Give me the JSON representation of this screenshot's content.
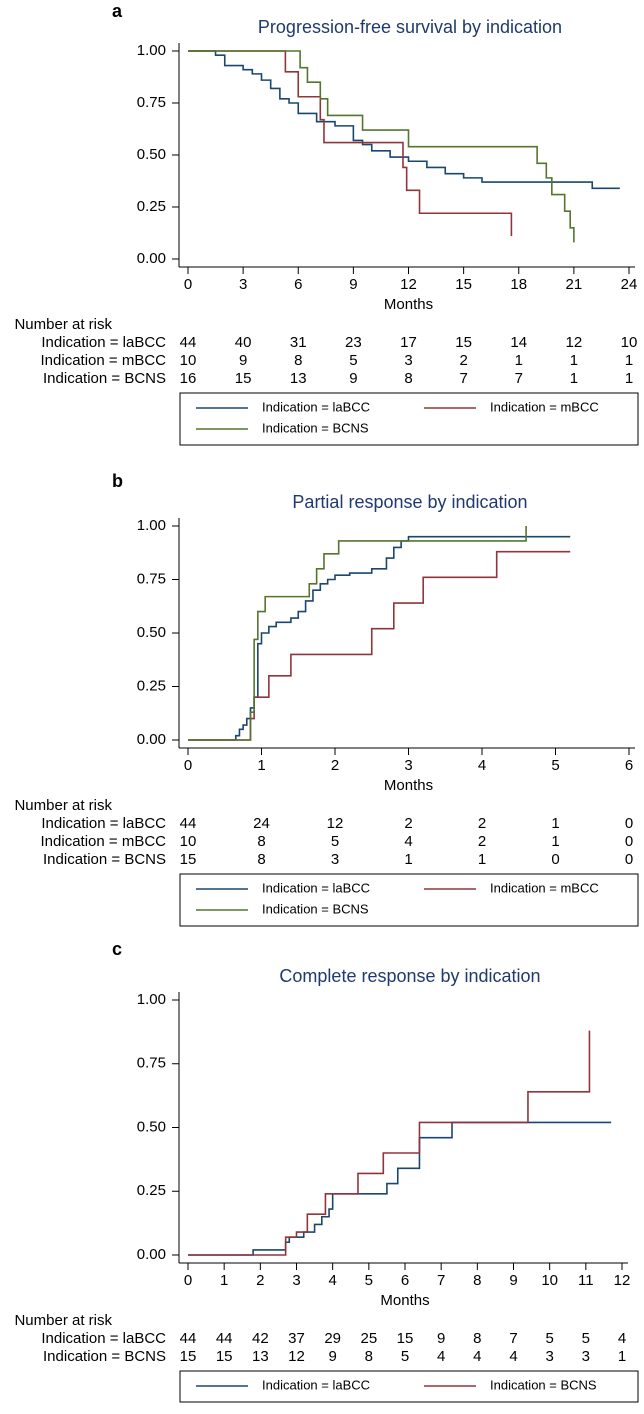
{
  "chart_data": [
    {
      "type": "line",
      "drawstyle": "steps-post",
      "panel_label": "a",
      "title": "Progression-free survival by indication",
      "xlabel": "Months",
      "xlim": [
        0,
        24
      ],
      "xticks": [
        0,
        3,
        6,
        9,
        12,
        15,
        18,
        21,
        24
      ],
      "ylim": [
        0,
        1
      ],
      "yticks": [
        {
          "value": 0,
          "label": "0.00"
        },
        {
          "value": 0.25,
          "label": "0.25"
        },
        {
          "value": 0.5,
          "label": "0.50"
        },
        {
          "value": 0.75,
          "label": "0.75"
        },
        {
          "value": 1,
          "label": "1.00"
        }
      ],
      "series": [
        {
          "name": "Indication = laBCC",
          "color": "#1a476f",
          "x": [
            0,
            1.5,
            2,
            3,
            3.5,
            4,
            4.5,
            5,
            5.5,
            6,
            7,
            8,
            9,
            9.5,
            10,
            11,
            12,
            13,
            14,
            15,
            16,
            22,
            23.5
          ],
          "values": [
            1,
            0.98,
            0.93,
            0.91,
            0.89,
            0.86,
            0.82,
            0.77,
            0.75,
            0.7,
            0.66,
            0.64,
            0.57,
            0.55,
            0.52,
            0.49,
            0.47,
            0.44,
            0.41,
            0.39,
            0.37,
            0.34,
            0.34
          ]
        },
        {
          "name": "Indication = mBCC",
          "color": "#90353b",
          "x": [
            0,
            5.3,
            6,
            7.2,
            7.4,
            11.7,
            11.9,
            12.6,
            17.6
          ],
          "values": [
            1,
            0.9,
            0.78,
            0.67,
            0.56,
            0.44,
            0.33,
            0.22,
            0.11
          ]
        },
        {
          "name": "Indication = BCNS",
          "color": "#55752f",
          "x": [
            0,
            6.1,
            6.5,
            7.2,
            7.6,
            9.5,
            12,
            19,
            19.5,
            19.8,
            20.5,
            20.8,
            21
          ],
          "values": [
            1,
            0.92,
            0.85,
            0.77,
            0.69,
            0.62,
            0.54,
            0.46,
            0.39,
            0.31,
            0.23,
            0.15,
            0.08
          ]
        }
      ],
      "risk_table": {
        "title": "Number at risk",
        "rows": [
          {
            "label": "Indication = laBCC",
            "values": [
              44,
              40,
              31,
              23,
              17,
              15,
              14,
              12,
              10
            ]
          },
          {
            "label": "Indication = mBCC",
            "values": [
              10,
              9,
              8,
              5,
              3,
              2,
              1,
              1,
              1
            ]
          },
          {
            "label": "Indication = BCNS",
            "values": [
              16,
              15,
              13,
              9,
              8,
              7,
              7,
              1,
              1
            ]
          }
        ]
      }
    },
    {
      "type": "line",
      "drawstyle": "steps-post",
      "panel_label": "b",
      "title": "Partial response by indication",
      "xlabel": "Months",
      "xlim": [
        0,
        6
      ],
      "xticks": [
        0,
        1,
        2,
        3,
        4,
        5,
        6
      ],
      "ylim": [
        0,
        1
      ],
      "yticks": [
        {
          "value": 0,
          "label": "0.00"
        },
        {
          "value": 0.25,
          "label": "0.25"
        },
        {
          "value": 0.5,
          "label": "0.50"
        },
        {
          "value": 0.75,
          "label": "0.75"
        },
        {
          "value": 1,
          "label": "1.00"
        }
      ],
      "series": [
        {
          "name": "Indication = laBCC",
          "color": "#1a476f",
          "x": [
            0,
            0.65,
            0.7,
            0.75,
            0.8,
            0.85,
            0.9,
            0.95,
            1.0,
            1.1,
            1.2,
            1.4,
            1.5,
            1.6,
            1.7,
            1.8,
            1.9,
            2.0,
            2.2,
            2.5,
            2.7,
            2.8,
            2.9,
            3.0,
            5.2
          ],
          "values": [
            0,
            0.02,
            0.05,
            0.07,
            0.1,
            0.15,
            0.2,
            0.45,
            0.5,
            0.53,
            0.55,
            0.57,
            0.6,
            0.65,
            0.7,
            0.73,
            0.75,
            0.77,
            0.78,
            0.8,
            0.85,
            0.9,
            0.93,
            0.95,
            0.95
          ]
        },
        {
          "name": "Indication = mBCC",
          "color": "#90353b",
          "x": [
            0,
            0.85,
            0.9,
            1.1,
            1.4,
            2.5,
            2.8,
            3.2,
            4.2,
            5.2
          ],
          "values": [
            0,
            0.1,
            0.2,
            0.3,
            0.4,
            0.52,
            0.64,
            0.76,
            0.88,
            0.88
          ]
        },
        {
          "name": "Indication = BCNS",
          "color": "#55752f",
          "x": [
            0,
            0.85,
            0.9,
            0.95,
            1.05,
            1.65,
            1.75,
            1.85,
            2.05,
            4.6
          ],
          "values": [
            0,
            0.13,
            0.47,
            0.6,
            0.67,
            0.73,
            0.8,
            0.87,
            0.93,
            1
          ]
        }
      ],
      "risk_table": {
        "title": "Number at risk",
        "rows": [
          {
            "label": "Indication = laBCC",
            "values": [
              44,
              24,
              12,
              2,
              2,
              1,
              0
            ]
          },
          {
            "label": "Indication = mBCC",
            "values": [
              10,
              8,
              5,
              4,
              2,
              1,
              0
            ]
          },
          {
            "label": "Indication = BCNS",
            "values": [
              15,
              8,
              3,
              1,
              1,
              0,
              0
            ]
          }
        ]
      }
    },
    {
      "type": "line",
      "drawstyle": "steps-post",
      "panel_label": "c",
      "title": "Complete response by indication",
      "xlabel": "Months",
      "xlim": [
        0,
        12
      ],
      "xticks": [
        0,
        1,
        2,
        3,
        4,
        5,
        6,
        7,
        8,
        9,
        10,
        11,
        12
      ],
      "ylim": [
        0,
        1
      ],
      "yticks": [
        {
          "value": 0,
          "label": "0.00"
        },
        {
          "value": 0.25,
          "label": "0.25"
        },
        {
          "value": 0.5,
          "label": "0.50"
        },
        {
          "value": 0.75,
          "label": "0.75"
        },
        {
          "value": 1,
          "label": "1.00"
        }
      ],
      "series": [
        {
          "name": "Indication = laBCC",
          "color": "#1a476f",
          "x": [
            0,
            1.8,
            2.7,
            2.8,
            3.2,
            3.5,
            3.7,
            3.9,
            4.0,
            5.5,
            5.8,
            6.4,
            7.3,
            11.7
          ],
          "values": [
            0,
            0.02,
            0.05,
            0.07,
            0.09,
            0.12,
            0.15,
            0.18,
            0.24,
            0.28,
            0.34,
            0.46,
            0.52,
            0.52
          ]
        },
        {
          "name": "Indication = BCNS",
          "color": "#90353b",
          "x": [
            0,
            2.7,
            3.0,
            3.3,
            3.8,
            4.7,
            5.4,
            6.4,
            9.4,
            11.1
          ],
          "values": [
            0,
            0.07,
            0.09,
            0.16,
            0.24,
            0.32,
            0.4,
            0.52,
            0.64,
            0.88
          ]
        }
      ],
      "risk_table": {
        "title": "Number at risk",
        "rows": [
          {
            "label": "Indication = laBCC",
            "values": [
              44,
              44,
              42,
              37,
              29,
              25,
              15,
              9,
              8,
              7,
              5,
              5,
              4
            ]
          },
          {
            "label": "Indication = BCNS",
            "values": [
              15,
              15,
              13,
              12,
              9,
              8,
              5,
              4,
              4,
              4,
              3,
              3,
              1
            ]
          }
        ]
      }
    }
  ]
}
